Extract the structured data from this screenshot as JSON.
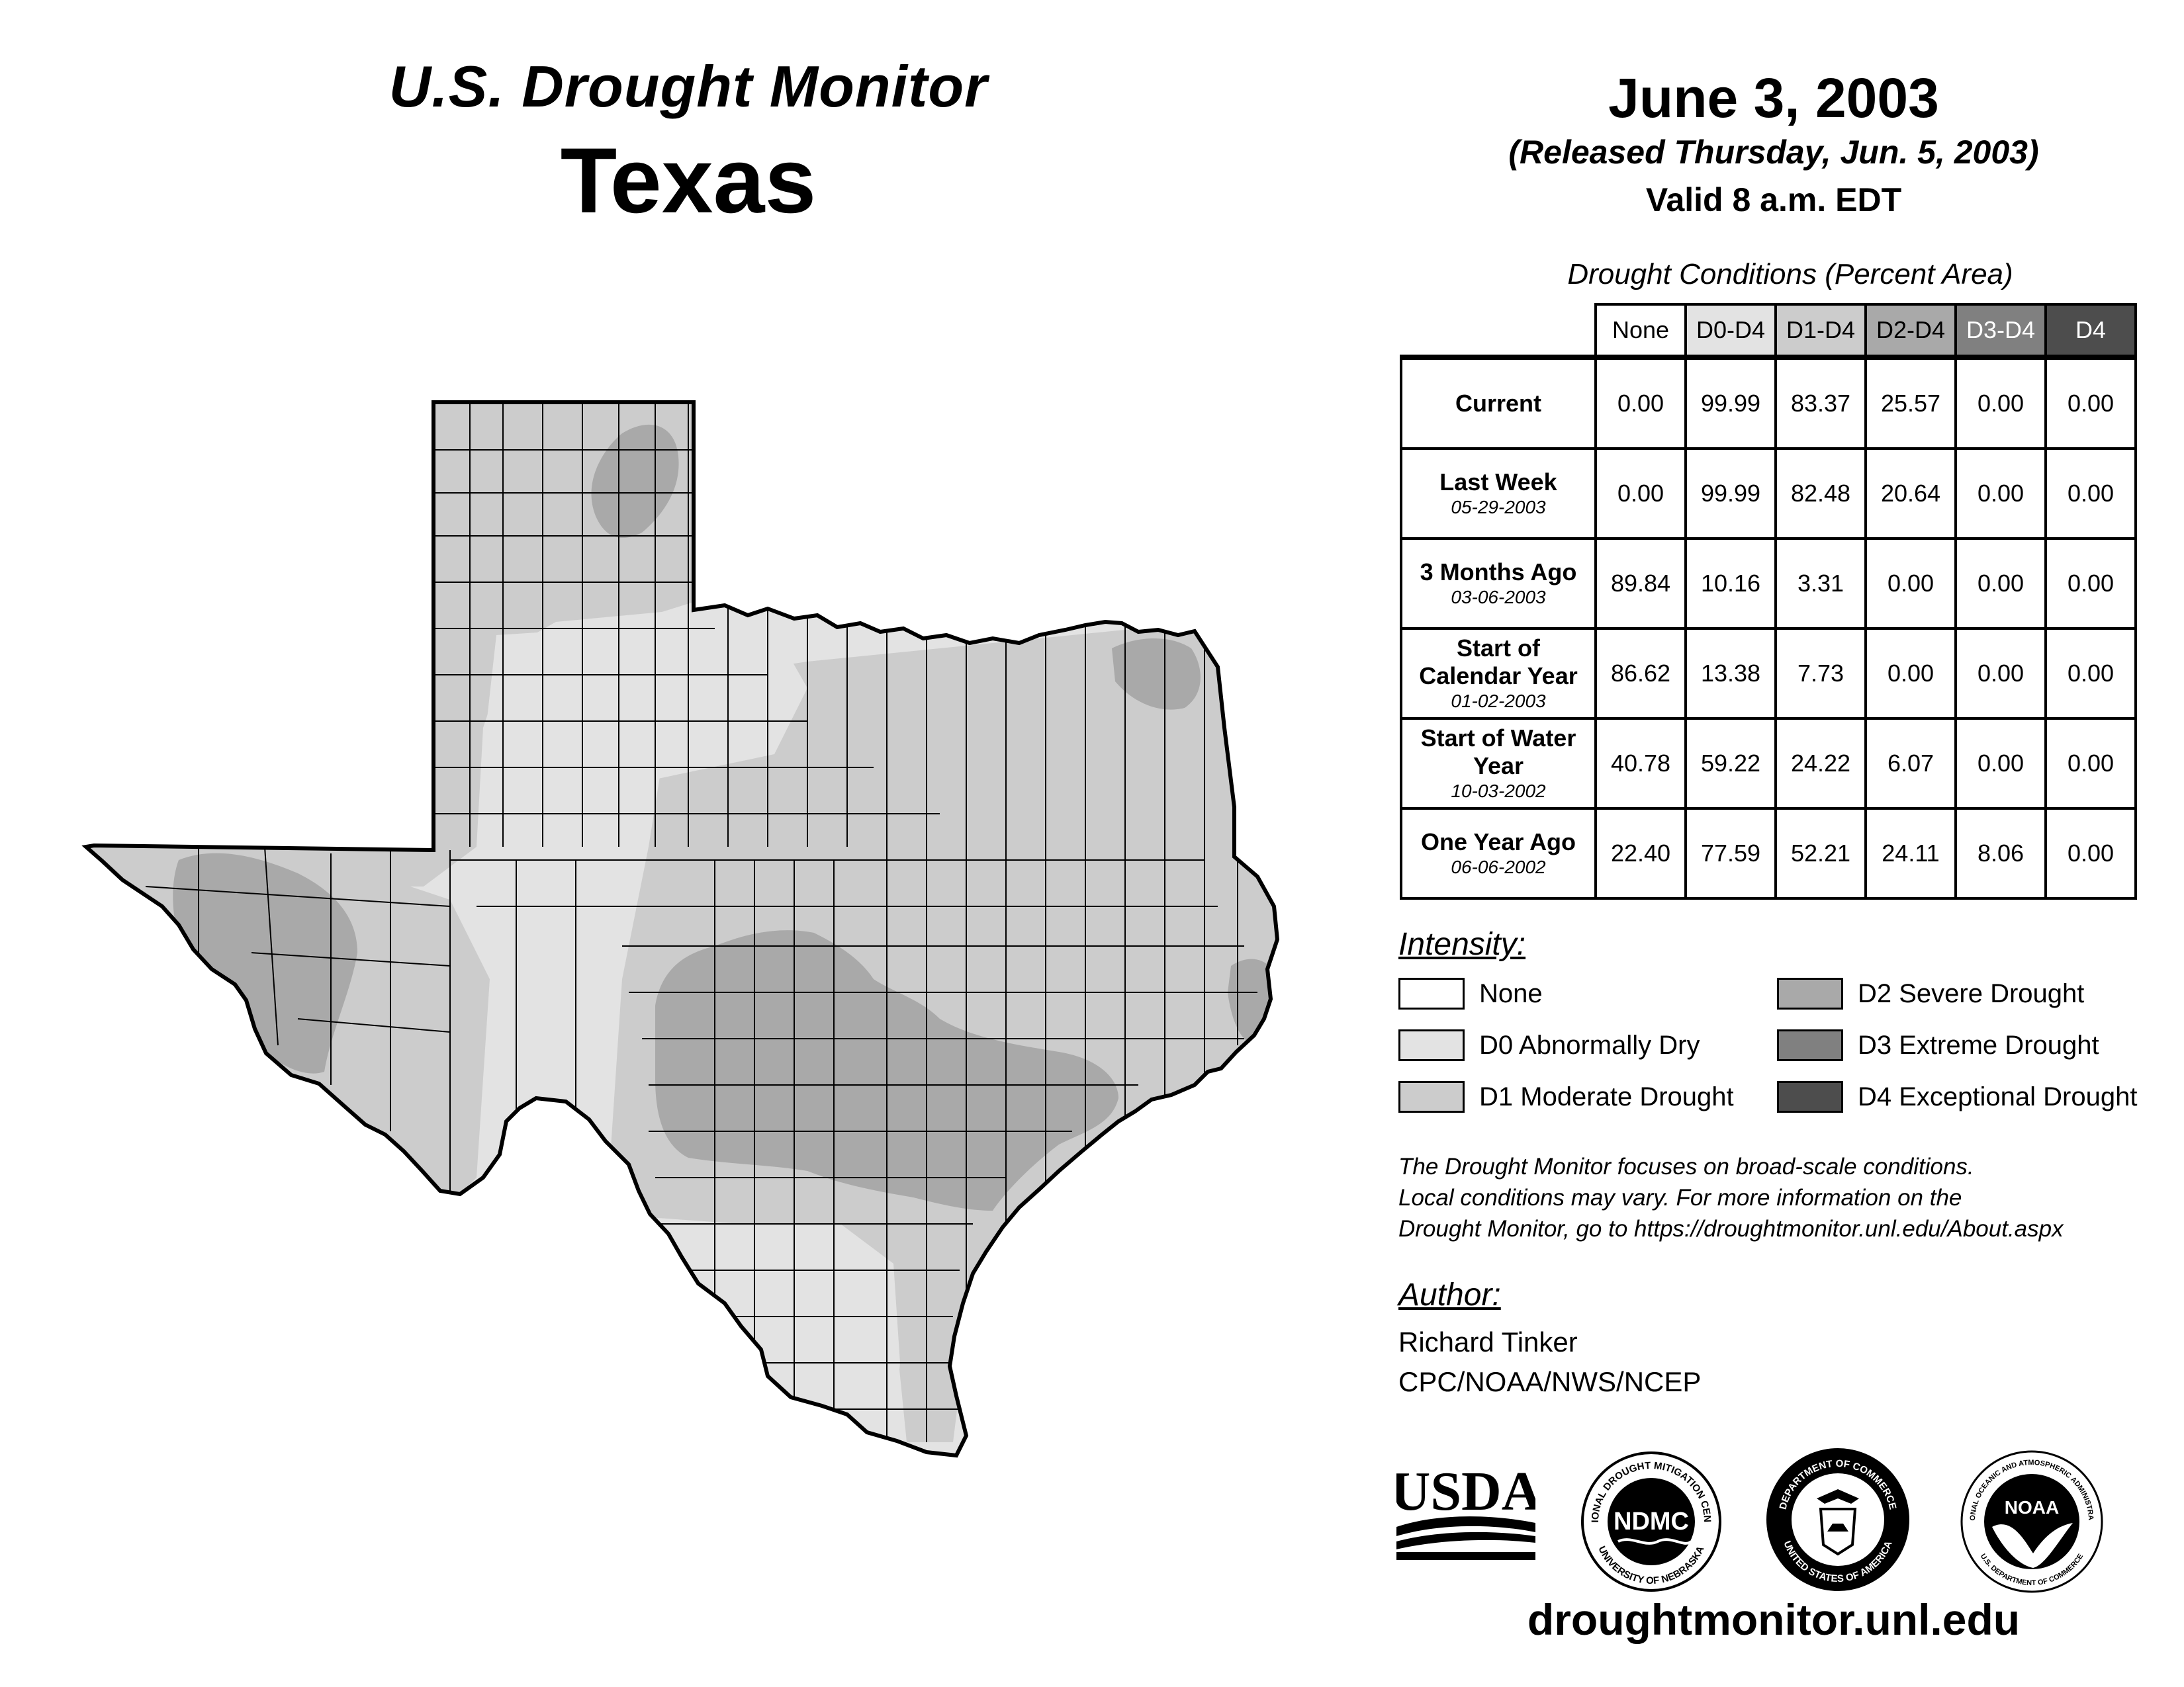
{
  "header": {
    "monitor_title": "U.S. Drought Monitor",
    "state": "Texas",
    "map_date": "June 3, 2003",
    "release_date": "(Released Thursday, Jun. 5, 2003)",
    "valid_time": "Valid 8 a.m. EDT"
  },
  "table": {
    "caption": "Drought Conditions (Percent Area)",
    "columns": [
      "None",
      "D0-D4",
      "D1-D4",
      "D2-D4",
      "D3-D4",
      "D4"
    ],
    "rows": [
      {
        "label": "Current",
        "date": "",
        "values": [
          "0.00",
          "99.99",
          "83.37",
          "25.57",
          "0.00",
          "0.00"
        ]
      },
      {
        "label": "Last Week",
        "date": "05-29-2003",
        "values": [
          "0.00",
          "99.99",
          "82.48",
          "20.64",
          "0.00",
          "0.00"
        ]
      },
      {
        "label": "3 Months Ago",
        "date": "03-06-2003",
        "values": [
          "89.84",
          "10.16",
          "3.31",
          "0.00",
          "0.00",
          "0.00"
        ]
      },
      {
        "label": "Start of Calendar Year",
        "date": "01-02-2003",
        "values": [
          "86.62",
          "13.38",
          "7.73",
          "0.00",
          "0.00",
          "0.00"
        ]
      },
      {
        "label": "Start of Water Year",
        "date": "10-03-2002",
        "values": [
          "40.78",
          "59.22",
          "24.22",
          "6.07",
          "0.00",
          "0.00"
        ]
      },
      {
        "label": "One Year Ago",
        "date": "06-06-2002",
        "values": [
          "22.40",
          "77.59",
          "52.21",
          "24.11",
          "8.06",
          "0.00"
        ]
      }
    ]
  },
  "legend": {
    "heading": "Intensity:",
    "items": [
      {
        "label": "None",
        "color": "#ffffff"
      },
      {
        "label": "D0 Abnormally Dry",
        "color": "#e3e3e3"
      },
      {
        "label": "D1 Moderate Drought",
        "color": "#cccccc"
      },
      {
        "label": "D2 Severe Drought",
        "color": "#a9a9a9"
      },
      {
        "label": "D3 Extreme Drought",
        "color": "#808080"
      },
      {
        "label": "D4 Exceptional Drought",
        "color": "#4d4d4d"
      }
    ]
  },
  "disclaimer": {
    "line1": "The Drought Monitor focuses on broad-scale conditions.",
    "line2": "Local conditions may vary. For more information on the",
    "line3": "Drought Monitor, go to https://droughtmonitor.unl.edu/About.aspx"
  },
  "author": {
    "heading": "Author:",
    "name": "Richard Tinker",
    "org": "CPC/NOAA/NWS/NCEP"
  },
  "logos": {
    "usda": "USDA",
    "ndmc": "NDMC",
    "ndmc_ring_top": "NATIONAL DROUGHT MITIGATION CENTER",
    "ndmc_ring_bottom": "UNIVERSITY OF NEBRASKA",
    "doc_ring_top": "DEPARTMENT OF COMMERCE",
    "doc_ring_bottom": "UNITED STATES OF AMERICA",
    "noaa": "NOAA",
    "noaa_ring_top": "NATIONAL OCEANIC AND ATMOSPHERIC ADMINISTRATION",
    "noaa_ring_bottom": "U.S. DEPARTMENT OF COMMERCE"
  },
  "website": "droughtmonitor.unl.edu",
  "colors": {
    "none": "#ffffff",
    "d0": "#e3e3e3",
    "d1": "#cccccc",
    "d2": "#a9a9a9",
    "d3": "#808080",
    "d4": "#4d4d4d"
  }
}
